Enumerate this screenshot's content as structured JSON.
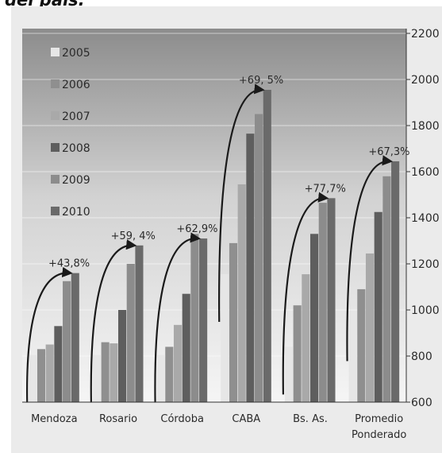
{
  "caption": "del país.",
  "chart_data": {
    "type": "bar",
    "categories": [
      "Mendoza",
      "Rosario",
      "Córdoba",
      "CABA",
      "Bs. As.",
      "Promedio Ponderado"
    ],
    "series": [
      {
        "name": "2005",
        "values": [
          805,
          805,
          805,
          1155,
          840,
          985
        ]
      },
      {
        "name": "2006",
        "values": [
          830,
          860,
          840,
          1290,
          1020,
          1090
        ]
      },
      {
        "name": "2007",
        "values": [
          850,
          855,
          935,
          1545,
          1155,
          1245
        ]
      },
      {
        "name": "2008",
        "values": [
          930,
          1000,
          1070,
          1765,
          1330,
          1425
        ]
      },
      {
        "name": "2009",
        "values": [
          1125,
          1200,
          1330,
          1850,
          1465,
          1580
        ]
      },
      {
        "name": "2010",
        "values": [
          1160,
          1280,
          1310,
          1955,
          1485,
          1645
        ]
      }
    ],
    "colors": [
      "#e6e6e6",
      "#8f8f8f",
      "#a9a9a9",
      "#5e5e5e",
      "#8c8c8c",
      "#6a6a6a"
    ],
    "annotations": [
      "+43,8%",
      "+59, 4%",
      "+62,9%",
      "+69, 5%",
      "+77,7%",
      "+67,3%"
    ],
    "yticks": [
      600,
      800,
      1000,
      1200,
      1400,
      1600,
      1800,
      2000,
      2200
    ],
    "ylim": [
      600,
      2200
    ],
    "legend_position": "top-left"
  }
}
